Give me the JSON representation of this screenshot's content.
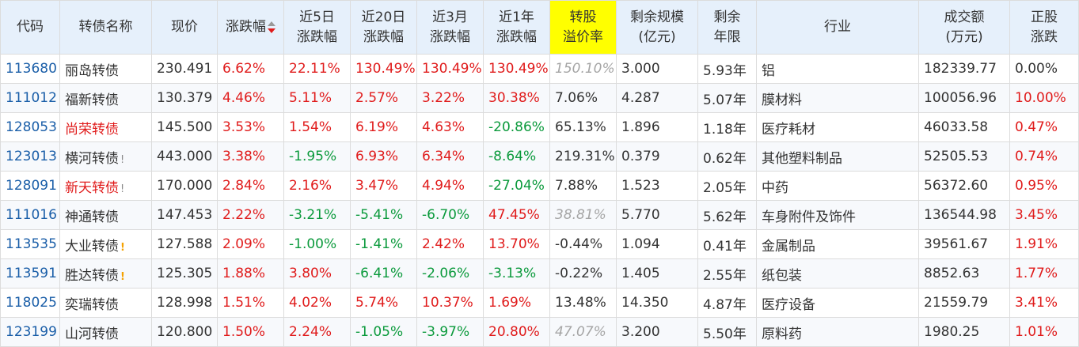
{
  "columns": [
    {
      "key": "code",
      "label": "代码"
    },
    {
      "key": "name",
      "label": "转债名称"
    },
    {
      "key": "price",
      "label": "现价"
    },
    {
      "key": "chg",
      "label": "涨跌幅"
    },
    {
      "key": "chg5",
      "label": "近5日\n涨跌幅"
    },
    {
      "key": "chg20",
      "label": "近20日\n涨跌幅"
    },
    {
      "key": "chg3m",
      "label": "近3月\n涨跌幅"
    },
    {
      "key": "chg1y",
      "label": "近1年\n涨跌幅"
    },
    {
      "key": "premium",
      "label": "转股\n溢价率",
      "highlight": true
    },
    {
      "key": "size",
      "label": "剩余规模\n(亿元)"
    },
    {
      "key": "years",
      "label": "剩余\n年限"
    },
    {
      "key": "industry",
      "label": "行业"
    },
    {
      "key": "volume",
      "label": "成交额\n(万元)"
    },
    {
      "key": "stock_chg",
      "label": "正股\n涨跌"
    }
  ],
  "sort": {
    "column": "chg",
    "direction": "desc",
    "up_icon": "sort-up-icon",
    "down_icon": "sort-down-icon"
  },
  "colors": {
    "up": "#e01b1b",
    "down": "#0b9a3c",
    "code": "#1a5ea8",
    "muted": "#a5a5a5",
    "warning": "#f5a200",
    "header_bg": "#e6f0fb",
    "highlight": "#ffff00"
  },
  "rows": [
    {
      "code": "113680",
      "name": "丽岛转债",
      "name_red": false,
      "flag": "",
      "price": "230.491",
      "chg": "6.62%",
      "chg5": "22.11%",
      "chg20": "130.49%",
      "chg3m": "130.49%",
      "chg1y": "130.49%",
      "premium": "150.10%",
      "premium_muted": true,
      "size": "3.000",
      "years": "5.93年",
      "industry": "铝",
      "volume": "182339.77",
      "stock_chg": "0.00%"
    },
    {
      "code": "111012",
      "name": "福新转债",
      "name_red": false,
      "flag": "",
      "price": "130.379",
      "chg": "4.46%",
      "chg5": "5.11%",
      "chg20": "2.57%",
      "chg3m": "3.22%",
      "chg1y": "30.38%",
      "premium": "7.06%",
      "premium_muted": false,
      "size": "4.287",
      "years": "5.07年",
      "industry": "膜材料",
      "volume": "100056.96",
      "stock_chg": "10.00%"
    },
    {
      "code": "128053",
      "name": "尚荣转债",
      "name_red": true,
      "flag": "",
      "price": "145.500",
      "chg": "3.53%",
      "chg5": "1.54%",
      "chg20": "6.19%",
      "chg3m": "4.63%",
      "chg1y": "-20.86%",
      "premium": "65.13%",
      "premium_muted": false,
      "size": "1.896",
      "years": "1.18年",
      "industry": "医疗耗材",
      "volume": "46033.58",
      "stock_chg": "0.47%"
    },
    {
      "code": "123013",
      "name": "横河转债",
      "name_red": false,
      "flag": "!",
      "flag_orange": false,
      "price": "443.000",
      "chg": "3.38%",
      "chg5": "-1.95%",
      "chg20": "6.93%",
      "chg3m": "6.34%",
      "chg1y": "-8.64%",
      "premium": "219.31%",
      "premium_muted": false,
      "size": "0.379",
      "years": "0.62年",
      "industry": "其他塑料制品",
      "volume": "52505.53",
      "stock_chg": "0.74%"
    },
    {
      "code": "128091",
      "name": "新天转债",
      "name_red": true,
      "flag": "!",
      "flag_orange": false,
      "price": "170.000",
      "chg": "2.84%",
      "chg5": "2.16%",
      "chg20": "3.47%",
      "chg3m": "4.94%",
      "chg1y": "-27.04%",
      "premium": "7.88%",
      "premium_muted": false,
      "size": "1.523",
      "years": "2.05年",
      "industry": "中药",
      "volume": "56372.60",
      "stock_chg": "0.95%"
    },
    {
      "code": "111016",
      "name": "神通转债",
      "name_red": false,
      "flag": "",
      "price": "147.453",
      "chg": "2.22%",
      "chg5": "-3.21%",
      "chg20": "-5.41%",
      "chg3m": "-6.70%",
      "chg1y": "47.45%",
      "premium": "38.81%",
      "premium_muted": true,
      "size": "5.770",
      "years": "5.62年",
      "industry": "车身附件及饰件",
      "volume": "136544.98",
      "stock_chg": "3.45%"
    },
    {
      "code": "113535",
      "name": "大业转债",
      "name_red": false,
      "flag": "!",
      "flag_orange": true,
      "price": "127.588",
      "chg": "2.09%",
      "chg5": "-1.00%",
      "chg20": "-1.41%",
      "chg3m": "2.42%",
      "chg1y": "13.70%",
      "premium": "-0.44%",
      "premium_muted": false,
      "size": "1.094",
      "years": "0.41年",
      "industry": "金属制品",
      "volume": "39561.67",
      "stock_chg": "1.91%"
    },
    {
      "code": "113591",
      "name": "胜达转债",
      "name_red": false,
      "flag": "!",
      "flag_orange": true,
      "price": "125.305",
      "chg": "1.88%",
      "chg5": "3.80%",
      "chg20": "-6.41%",
      "chg3m": "-2.06%",
      "chg1y": "-3.13%",
      "premium": "-0.22%",
      "premium_muted": false,
      "size": "1.405",
      "years": "2.55年",
      "industry": "纸包装",
      "volume": "8852.63",
      "stock_chg": "1.77%"
    },
    {
      "code": "118025",
      "name": "奕瑞转债",
      "name_red": false,
      "flag": "",
      "price": "128.998",
      "chg": "1.51%",
      "chg5": "4.02%",
      "chg20": "5.74%",
      "chg3m": "10.37%",
      "chg1y": "1.69%",
      "premium": "13.48%",
      "premium_muted": false,
      "size": "14.350",
      "years": "4.87年",
      "industry": "医疗设备",
      "volume": "21559.79",
      "stock_chg": "3.41%"
    },
    {
      "code": "123199",
      "name": "山河转债",
      "name_red": false,
      "flag": "",
      "price": "120.800",
      "chg": "1.50%",
      "chg5": "2.24%",
      "chg20": "-1.05%",
      "chg3m": "-3.97%",
      "chg1y": "20.80%",
      "premium": "47.07%",
      "premium_muted": true,
      "size": "3.200",
      "years": "5.50年",
      "industry": "原料药",
      "volume": "1980.25",
      "stock_chg": "1.01%"
    }
  ]
}
